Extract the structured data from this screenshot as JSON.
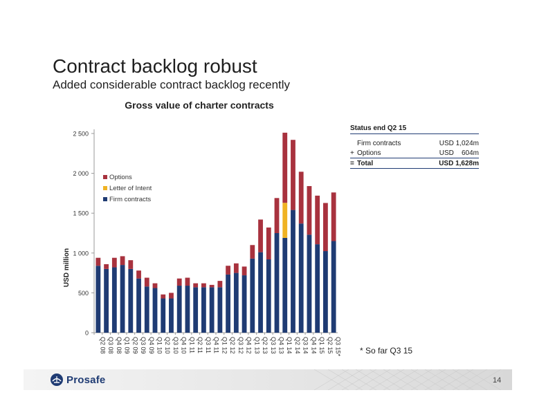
{
  "slide": {
    "title": "Contract backlog robust",
    "subtitle": "Added considerable contract backlog recently",
    "footnote": "* So far Q3 15",
    "page_number": "14",
    "logo_text": "Prosafe"
  },
  "status": {
    "header": "Status end Q2 15",
    "rows": [
      {
        "op": "",
        "label": "Firm contracts",
        "value": "USD 1,024m"
      },
      {
        "op": "+",
        "label": "Options",
        "value": "USD    604m"
      },
      {
        "op": "=",
        "label": "Total",
        "value": "USD 1,628m"
      }
    ]
  },
  "colors": {
    "firm": "#1f3b73",
    "loi": "#f0b323",
    "options": "#a8323e",
    "brand": "#1f3b73"
  },
  "chart_data": {
    "type": "bar",
    "stacked": true,
    "title": "Gross value of charter contracts",
    "ylabel": "USD million",
    "xlabel": "",
    "ylim": [
      0,
      2500
    ],
    "yticks": [
      0,
      500,
      1000,
      1500,
      2000,
      2500
    ],
    "ytick_labels": [
      "0",
      "500",
      "1 000",
      "1 500",
      "2 000",
      "2 500"
    ],
    "legend_position": "top-left",
    "categories": [
      "Q2 08",
      "Q3 08",
      "Q4 08",
      "Q1 09",
      "Q2 09",
      "Q3 09",
      "Q4 09",
      "Q1 10",
      "Q2 10",
      "Q3 10",
      "Q4 10",
      "Q1 11",
      "Q2 11",
      "Q3 11",
      "Q4 11",
      "Q1 12",
      "Q2 12",
      "Q3 12",
      "Q4 12",
      "Q1 13",
      "Q2 13",
      "Q3 13",
      "Q4 13",
      "Q1 14",
      "Q2 14",
      "Q3 14",
      "Q4 14",
      "Q1 15",
      "Q2 15",
      "Q3 15*"
    ],
    "series": [
      {
        "name": "Firm contracts",
        "values": [
          840,
          800,
          820,
          850,
          800,
          680,
          580,
          560,
          430,
          430,
          590,
          590,
          570,
          570,
          570,
          570,
          730,
          750,
          720,
          930,
          1010,
          920,
          1250,
          1190,
          1540,
          1370,
          1230,
          1110,
          1024,
          1150
        ]
      },
      {
        "name": "Letter of Intent",
        "values": [
          0,
          0,
          0,
          0,
          0,
          0,
          0,
          0,
          0,
          0,
          0,
          0,
          0,
          0,
          0,
          0,
          0,
          0,
          0,
          0,
          0,
          0,
          0,
          440,
          0,
          0,
          0,
          0,
          0,
          0
        ]
      },
      {
        "name": "Options",
        "values": [
          100,
          60,
          120,
          110,
          110,
          100,
          110,
          60,
          50,
          70,
          90,
          100,
          50,
          50,
          30,
          80,
          110,
          120,
          110,
          170,
          410,
          400,
          440,
          880,
          880,
          650,
          610,
          610,
          604,
          610
        ]
      }
    ],
    "legend_order": [
      "Options",
      "Letter of Intent",
      "Firm contracts"
    ]
  }
}
